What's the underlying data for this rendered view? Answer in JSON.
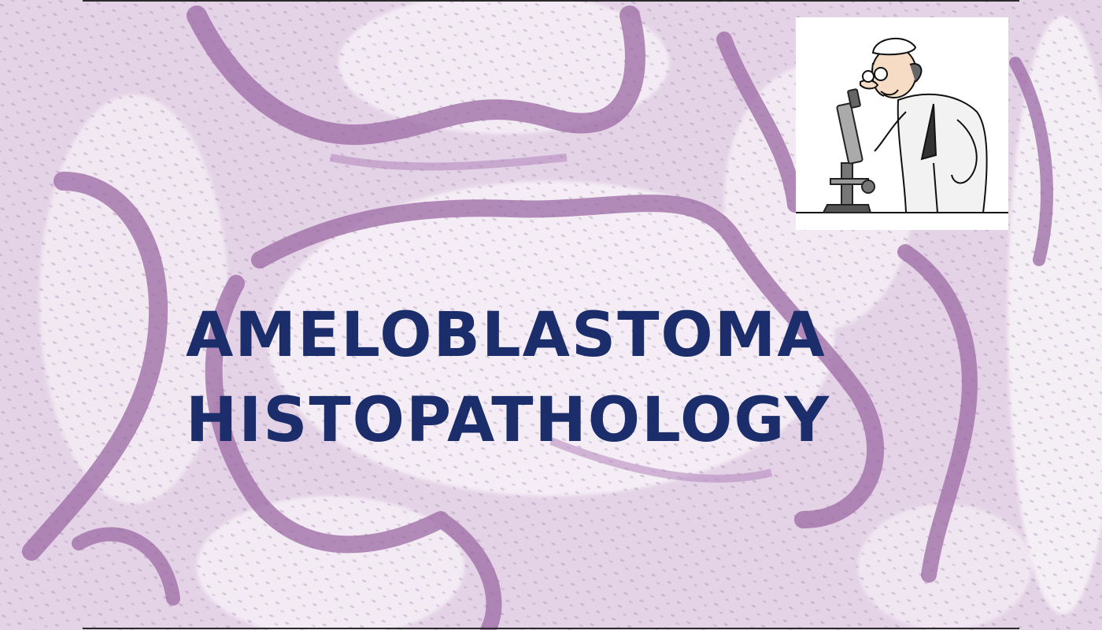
{
  "title": {
    "line1": "AMELOBLASTOMA",
    "line2": "HISTOPATHOLOGY"
  },
  "illustration": {
    "subject": "scientist-with-microscope",
    "background": "histology-tissue-section"
  },
  "colors": {
    "title_text": "#1b2d6b",
    "tissue_base": "#e4d3e6",
    "epithelium": "#9b6aa4",
    "stroma": "#f3ebf4"
  }
}
